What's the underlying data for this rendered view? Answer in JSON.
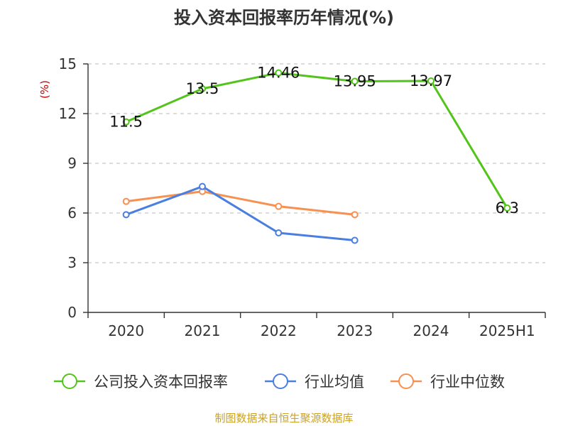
{
  "chart_data": {
    "type": "line",
    "title": "投入资本回报率历年情况(%)",
    "ylabel": "(%)",
    "categories": [
      "2020",
      "2021",
      "2022",
      "2023",
      "2024",
      "2025H1"
    ],
    "ylim": [
      0,
      15
    ],
    "yticks": [
      "0",
      "3",
      "6",
      "9",
      "12",
      "15"
    ],
    "grid": true,
    "legend_position": "bottom",
    "series": [
      {
        "name": "公司投入资本回报率",
        "color": "#52c41a",
        "values": [
          11.5,
          13.5,
          14.46,
          13.95,
          13.97,
          6.3
        ],
        "labels": [
          "11.5",
          "13.5",
          "14.46",
          "13.95",
          "13.97",
          "6.3"
        ]
      },
      {
        "name": "行业均值",
        "color": "#4a7fe0",
        "values": [
          5.9,
          7.6,
          4.8,
          4.35,
          null,
          null
        ]
      },
      {
        "name": "行业中位数",
        "color": "#f79152",
        "values": [
          6.7,
          7.3,
          6.4,
          5.9,
          null,
          null
        ]
      }
    ]
  },
  "source_text": "制图数据来自恒生聚源数据库"
}
